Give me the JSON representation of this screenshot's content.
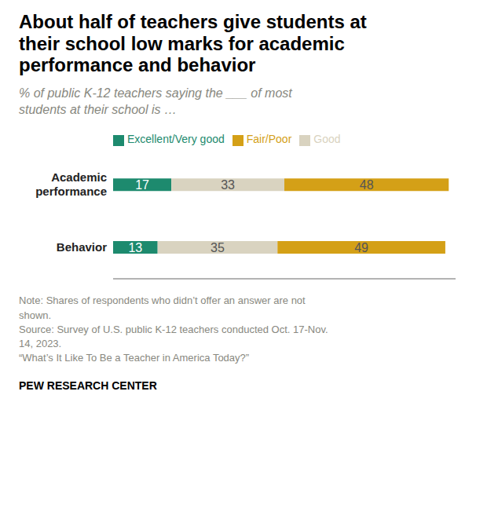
{
  "chart_data": {
    "type": "bar",
    "orientation": "horizontal",
    "stacked": true,
    "data_labels": true,
    "tick_labels": "y",
    "grid": false,
    "legend": "top",
    "title": "About half of teachers give students at\ntheir school low marks for academic\nperformance and behavior",
    "subtitle": "% of public K-12 teachers saying the ___ of most\nstudents at their school is …",
    "categories": [
      "Academic\nperformance",
      "Behavior"
    ],
    "xlim": [
      0,
      100
    ],
    "series": [
      {
        "name": "Excellent/Very good",
        "color": "#1d8a6e",
        "values": [
          17,
          13
        ]
      },
      {
        "name": "Good",
        "color": "#d9d3c0",
        "values": [
          33,
          35
        ]
      },
      {
        "name": "Fair/Poor",
        "color": "#d4a017",
        "values": [
          48,
          49
        ]
      }
    ],
    "annotations": [
      "Note: Shares of respondents who didn’t offer an answer are not\nshown.\nSource: Survey of U.S. public K-12 teachers conducted Oct. 17-Nov.\n14, 2023.\n“What’s It Like To Be a Teacher in America Today?”",
      "PEW RESEARCH CENTER"
    ]
  }
}
